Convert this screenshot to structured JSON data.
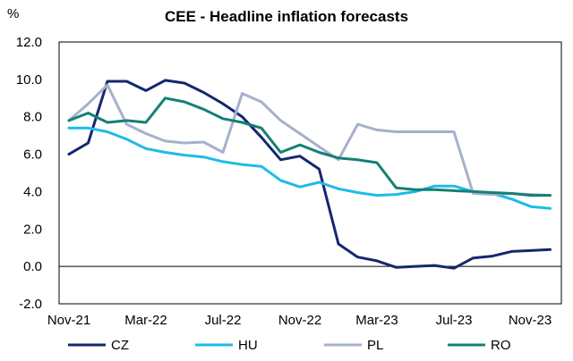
{
  "chart_data": {
    "type": "line",
    "title": "CEE - Headline inflation forecasts",
    "ylabel": "%",
    "xlabel": "",
    "ylim": [
      -2.0,
      12.0
    ],
    "y_ticks": [
      "12.0",
      "10.0",
      "8.0",
      "6.0",
      "4.0",
      "2.0",
      "0.0",
      "-2.0"
    ],
    "y_tick_values": [
      12,
      10,
      8,
      6,
      4,
      2,
      0,
      -2
    ],
    "x_tick_labels": [
      "Nov-21",
      "Mar-22",
      "Jul-22",
      "Nov-22",
      "Mar-23",
      "Jul-23",
      "Nov-23"
    ],
    "x_tick_indices": [
      0,
      4,
      8,
      12,
      16,
      20,
      24
    ],
    "categories": [
      "Nov-21",
      "Dec-21",
      "Jan-22",
      "Feb-22",
      "Mar-22",
      "Apr-22",
      "May-22",
      "Jun-22",
      "Jul-22",
      "Aug-22",
      "Sep-22",
      "Oct-22",
      "Nov-22",
      "Dec-22",
      "Jan-23",
      "Feb-23",
      "Mar-23",
      "Apr-23",
      "May-23",
      "Jun-23",
      "Jul-23",
      "Aug-23",
      "Sep-23",
      "Oct-23",
      "Nov-23",
      "Dec-23"
    ],
    "series": [
      {
        "name": "CZ",
        "color": "#14286e",
        "values": [
          6.0,
          6.6,
          9.9,
          9.9,
          9.4,
          9.95,
          9.8,
          9.3,
          8.7,
          8.0,
          6.9,
          5.7,
          5.9,
          5.2,
          1.2,
          0.5,
          0.3,
          -0.05,
          0.0,
          0.05,
          -0.1,
          0.45,
          0.55,
          0.8,
          0.85,
          0.9
        ]
      },
      {
        "name": "HU",
        "color": "#1ebbe8",
        "values": [
          7.4,
          7.4,
          7.2,
          6.8,
          6.3,
          6.1,
          5.95,
          5.85,
          5.6,
          5.45,
          5.35,
          4.6,
          4.25,
          4.5,
          4.15,
          3.95,
          3.8,
          3.85,
          4.0,
          4.3,
          4.3,
          4.0,
          3.9,
          3.6,
          3.2,
          3.1
        ]
      },
      {
        "name": "PL",
        "color": "#a7b0cc",
        "values": [
          7.8,
          8.7,
          9.7,
          7.6,
          7.1,
          6.7,
          6.6,
          6.65,
          6.1,
          9.25,
          8.8,
          7.8,
          7.1,
          6.4,
          5.7,
          7.6,
          7.3,
          7.2,
          7.2,
          7.2,
          7.2,
          3.9,
          3.85,
          3.9,
          3.85,
          3.8
        ]
      },
      {
        "name": "RO",
        "color": "#138075",
        "values": [
          7.8,
          8.2,
          7.7,
          7.8,
          7.7,
          9.0,
          8.8,
          8.4,
          7.9,
          7.7,
          7.4,
          6.1,
          6.5,
          6.1,
          5.8,
          5.7,
          5.55,
          4.2,
          4.1,
          4.1,
          4.05,
          4.0,
          3.95,
          3.9,
          3.8,
          3.8
        ]
      }
    ],
    "legend_position": "bottom",
    "grid": false
  }
}
